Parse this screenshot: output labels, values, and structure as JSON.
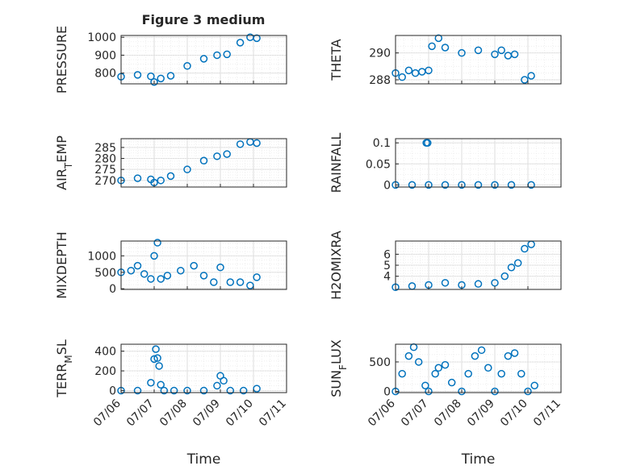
{
  "figure": {
    "title": "Figure 3 medium"
  },
  "series_color": "#0072BD",
  "x_ticks": [
    "07/06",
    "07/07",
    "07/08",
    "07/09",
    "07/10",
    "07/11"
  ],
  "x_axis_label": "Time",
  "chart_data": [
    {
      "id": "pressure",
      "type": "scatter",
      "title": "Figure 3 medium",
      "ylabel": "PRESSURE",
      "ylim": [
        740,
        1010
      ],
      "yticks": [
        800,
        900,
        1000
      ],
      "ytick_labels": [
        "800",
        "900",
        "1000"
      ],
      "xlim": [
        0,
        5
      ],
      "grid": true,
      "series": [
        {
          "x": [
            0,
            0.5,
            0.9,
            1.0,
            1.2,
            1.5,
            2.0,
            2.5,
            2.9,
            3.2,
            3.6,
            3.9,
            4.1
          ],
          "y": [
            780,
            790,
            782,
            750,
            770,
            785,
            840,
            880,
            900,
            905,
            970,
            1000,
            995
          ]
        }
      ]
    },
    {
      "id": "theta",
      "type": "scatter",
      "ylabel": "THETA",
      "ylim": [
        287.7,
        291.3
      ],
      "yticks": [
        288,
        290
      ],
      "ytick_labels": [
        "288",
        "290"
      ],
      "xlim": [
        0,
        5
      ],
      "grid": true,
      "series": [
        {
          "x": [
            0,
            0.2,
            0.4,
            0.6,
            0.8,
            1.0,
            1.1,
            1.3,
            1.5,
            2.0,
            2.5,
            3.0,
            3.2,
            3.4,
            3.6,
            3.9,
            4.1
          ],
          "y": [
            288.5,
            288.2,
            288.7,
            288.5,
            288.6,
            288.7,
            290.5,
            291.1,
            290.4,
            290.0,
            290.2,
            289.9,
            290.2,
            289.8,
            289.9,
            288.0,
            288.3
          ]
        }
      ]
    },
    {
      "id": "air_temp",
      "type": "scatter",
      "ylabel": "AIR_TEMP",
      "ylim": [
        267,
        289
      ],
      "yticks": [
        270,
        275,
        280,
        285
      ],
      "ytick_labels": [
        "270",
        "275",
        "280",
        "285"
      ],
      "xlim": [
        0,
        5
      ],
      "grid": true,
      "series": [
        {
          "x": [
            0,
            0.5,
            0.9,
            1.0,
            1.2,
            1.5,
            2.0,
            2.5,
            2.9,
            3.2,
            3.6,
            3.9,
            4.1
          ],
          "y": [
            270,
            271,
            270.5,
            269,
            270,
            272,
            275,
            279,
            281,
            282,
            286.5,
            287.5,
            287
          ]
        }
      ]
    },
    {
      "id": "rainfall",
      "type": "scatter",
      "ylabel": "RAINFALL",
      "ylim": [
        -0.005,
        0.11
      ],
      "yticks": [
        0,
        0.05,
        0.1
      ],
      "ytick_labels": [
        "0",
        "0.05",
        "0.1"
      ],
      "xlim": [
        0,
        5
      ],
      "grid": true,
      "series": [
        {
          "x": [
            0,
            0.5,
            1.0,
            1.5,
            2.0,
            2.5,
            3.0,
            3.5,
            4.1,
            0.93,
            0.97
          ],
          "y": [
            0,
            0,
            0,
            0,
            0,
            0,
            0,
            0,
            0,
            0.1,
            0.1
          ]
        }
      ]
    },
    {
      "id": "mixdepth",
      "type": "scatter",
      "ylabel": "MIXDEPTH",
      "ylim": [
        -20,
        1450
      ],
      "yticks": [
        0,
        500,
        1000
      ],
      "ytick_labels": [
        "0",
        "500",
        "1000"
      ],
      "xlim": [
        0,
        5
      ],
      "grid": true,
      "series": [
        {
          "x": [
            0,
            0.3,
            0.5,
            0.7,
            0.9,
            1.0,
            1.1,
            1.2,
            1.4,
            1.8,
            2.2,
            2.5,
            2.8,
            3.0,
            3.3,
            3.6,
            3.9,
            4.1
          ],
          "y": [
            500,
            550,
            700,
            450,
            300,
            1000,
            1400,
            300,
            400,
            550,
            700,
            400,
            200,
            650,
            200,
            200,
            100,
            350
          ]
        }
      ]
    },
    {
      "id": "h2omixra",
      "type": "scatter",
      "ylabel": "H2OMIXRA",
      "ylim": [
        2.8,
        7.2
      ],
      "yticks": [
        4,
        5,
        6
      ],
      "ytick_labels": [
        "4",
        "5",
        "6"
      ],
      "xlim": [
        0,
        5
      ],
      "grid": true,
      "series": [
        {
          "x": [
            0,
            0.5,
            1.0,
            1.5,
            2.0,
            2.5,
            3.0,
            3.3,
            3.5,
            3.7,
            3.9,
            4.1
          ],
          "y": [
            3.0,
            3.1,
            3.2,
            3.4,
            3.2,
            3.3,
            3.4,
            4.0,
            4.8,
            5.2,
            6.5,
            6.9
          ]
        }
      ]
    },
    {
      "id": "terr_msl",
      "type": "scatter",
      "ylabel": "TERR_MSL",
      "ylim": [
        -20,
        470
      ],
      "yticks": [
        0,
        200,
        400
      ],
      "ytick_labels": [
        "0",
        "200",
        "400"
      ],
      "xlim": [
        0,
        5
      ],
      "grid": true,
      "series": [
        {
          "x": [
            0,
            0.5,
            0.9,
            1.0,
            1.05,
            1.1,
            1.15,
            1.2,
            1.3,
            1.6,
            2.0,
            2.5,
            2.9,
            3.0,
            3.1,
            3.3,
            3.7,
            4.1
          ],
          "y": [
            0,
            0,
            80,
            320,
            420,
            330,
            250,
            60,
            0,
            0,
            0,
            0,
            50,
            150,
            100,
            0,
            0,
            20
          ]
        }
      ]
    },
    {
      "id": "sun_flux",
      "type": "scatter",
      "ylabel": "SUN_FLUX",
      "ylim": [
        -20,
        800
      ],
      "yticks": [
        0,
        500
      ],
      "ytick_labels": [
        "0",
        "500"
      ],
      "xlim": [
        0,
        5
      ],
      "grid": true,
      "series": [
        {
          "x": [
            0,
            0.2,
            0.4,
            0.55,
            0.7,
            0.9,
            1.0,
            1.2,
            1.3,
            1.5,
            1.7,
            2.0,
            2.2,
            2.4,
            2.6,
            2.8,
            3.0,
            3.2,
            3.4,
            3.6,
            3.8,
            4.0,
            4.2
          ],
          "y": [
            0,
            300,
            600,
            750,
            500,
            100,
            0,
            300,
            400,
            450,
            150,
            0,
            300,
            600,
            700,
            400,
            0,
            300,
            600,
            650,
            300,
            0,
            100
          ]
        }
      ]
    }
  ]
}
